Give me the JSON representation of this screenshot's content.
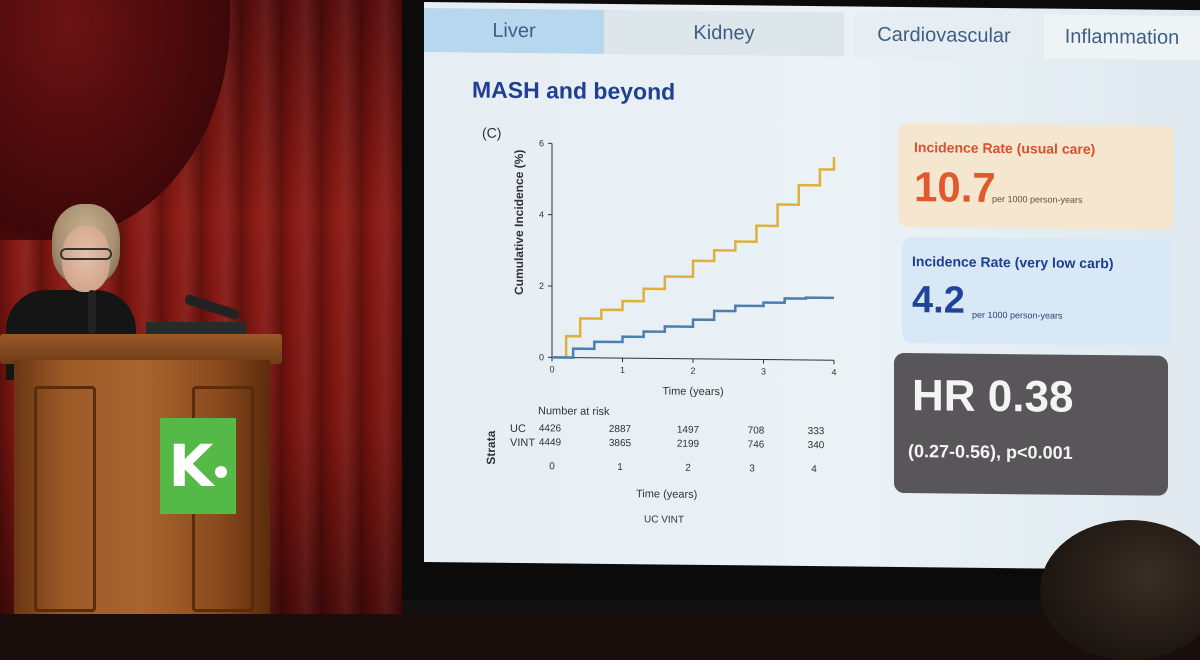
{
  "slide": {
    "tabs": [
      "Liver",
      "Kidney",
      "Cardiovascular",
      "Inflammation"
    ],
    "title": "MASH and beyond",
    "panel_label": "(C)",
    "y_axis_label": "Cumulative Incidence (%)",
    "x_axis_label": "Time (years)",
    "number_at_risk_title": "Number at risk",
    "strata_label": "Strata",
    "uc_row_label": "UC",
    "vint_row_label": "VINT",
    "uc_at_risk": [
      "4426",
      "2887",
      "1497",
      "708",
      "333"
    ],
    "vint_at_risk": [
      "4449",
      "3865",
      "2199",
      "746",
      "340"
    ],
    "risk_x_ticks": [
      "0",
      "1",
      "2",
      "3",
      "4"
    ],
    "legend_text": "UC  VINT",
    "uc_card": {
      "title": "Incidence Rate (usual care)",
      "value": "10.7",
      "unit": "per 1000 person-years"
    },
    "vlc_card": {
      "title": "Incidence Rate (very low carb)",
      "value": "4.2",
      "unit": "per 1000 person-years"
    },
    "hr_card": {
      "value": "HR 0.38",
      "ci": "(0.27-0.56), p<0.001"
    }
  },
  "chart_data": {
    "type": "line",
    "xlabel": "Time (years)",
    "ylabel": "Cumulative Incidence (%)",
    "xlim": [
      0,
      4
    ],
    "ylim": [
      0,
      6
    ],
    "x_ticks": [
      0,
      1,
      2,
      3,
      4
    ],
    "y_ticks": [
      0,
      2,
      4,
      6
    ],
    "series": [
      {
        "name": "UC",
        "color": "#e0b03c",
        "x": [
          0,
          0.2,
          0.4,
          0.7,
          1.0,
          1.3,
          1.6,
          2.0,
          2.3,
          2.6,
          2.9,
          3.2,
          3.5,
          3.8,
          4.0
        ],
        "y": [
          0,
          0.6,
          1.1,
          1.35,
          1.6,
          1.95,
          2.3,
          2.75,
          3.05,
          3.3,
          3.75,
          4.35,
          4.9,
          5.35,
          5.7
        ]
      },
      {
        "name": "VINT",
        "color": "#4a7fb0",
        "x": [
          0,
          0.3,
          0.6,
          1.0,
          1.3,
          1.6,
          2.0,
          2.3,
          2.6,
          3.0,
          3.3,
          3.6,
          4.0
        ],
        "y": [
          0,
          0.25,
          0.45,
          0.6,
          0.75,
          0.9,
          1.1,
          1.35,
          1.5,
          1.6,
          1.72,
          1.75,
          1.75
        ]
      }
    ]
  },
  "podium_logo": "K"
}
